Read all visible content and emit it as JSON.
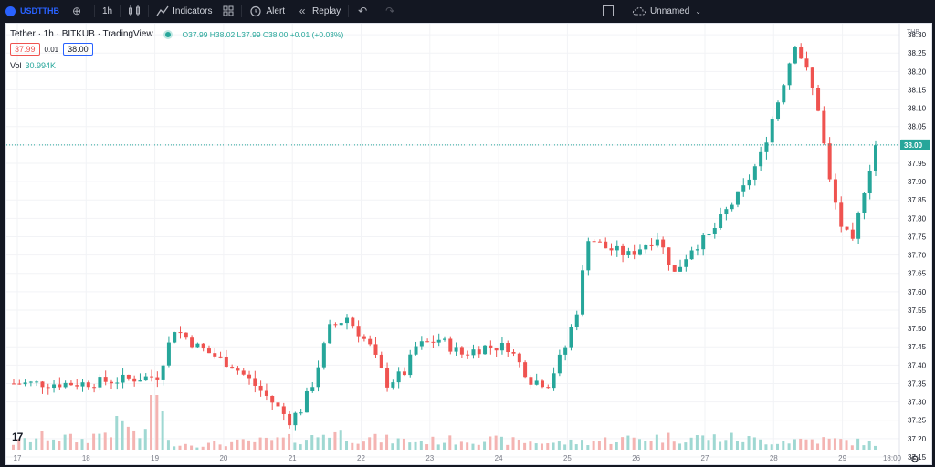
{
  "topbar": {
    "symbol": "USDTTHB",
    "interval": "1h",
    "indicators_label": "Indicators",
    "alert_label": "Alert",
    "replay_label": "Replay",
    "layout_name": "Unnamed"
  },
  "legend": {
    "title": "Tether · 1h · BITKUB · TradingView",
    "ohlc": "O37.99 H38.02 L37.99 C38.00 +0.01 (+0.03%)",
    "bid": "37.99",
    "spread": "0.01",
    "ask": "38.00",
    "vol_label": "Vol",
    "vol_value": "30.994K"
  },
  "colors": {
    "up": "#26a69a",
    "down": "#ef5350",
    "last_price": "#26a69a"
  },
  "chart_data": {
    "type": "candlestick",
    "price_axis": {
      "currency": "THB",
      "ticks": [
        "38.30",
        "38.25",
        "38.20",
        "38.15",
        "38.10",
        "38.05",
        "38.00",
        "37.95",
        "37.90",
        "37.85",
        "37.80",
        "37.75",
        "37.70",
        "37.65",
        "37.60",
        "37.55",
        "37.50",
        "37.45",
        "37.40",
        "37.35",
        "37.30",
        "37.25",
        "37.20",
        "37.15"
      ],
      "range": [
        37.13,
        38.33
      ],
      "last_price": "38.00"
    },
    "time_axis": {
      "ticks": [
        "17",
        "18",
        "19",
        "20",
        "21",
        "22",
        "23",
        "24",
        "25",
        "26",
        "27",
        "28",
        "29",
        "18:00"
      ]
    },
    "price_path": [
      [
        0,
        37.35
      ],
      [
        12,
        37.35
      ],
      [
        25,
        37.37
      ],
      [
        28,
        37.5
      ],
      [
        32,
        37.45
      ],
      [
        38,
        37.4
      ],
      [
        41,
        37.36
      ],
      [
        45,
        37.3
      ],
      [
        48,
        37.25
      ],
      [
        50,
        37.28
      ],
      [
        52,
        37.35
      ],
      [
        55,
        37.5
      ],
      [
        58,
        37.53
      ],
      [
        62,
        37.45
      ],
      [
        65,
        37.35
      ],
      [
        68,
        37.38
      ],
      [
        70,
        37.45
      ],
      [
        74,
        37.47
      ],
      [
        78,
        37.43
      ],
      [
        82,
        37.45
      ],
      [
        86,
        37.45
      ],
      [
        90,
        37.36
      ],
      [
        93,
        37.35
      ],
      [
        96,
        37.45
      ],
      [
        98,
        37.55
      ],
      [
        100,
        37.75
      ],
      [
        103,
        37.72
      ],
      [
        107,
        37.7
      ],
      [
        112,
        37.75
      ],
      [
        115,
        37.65
      ],
      [
        118,
        37.72
      ],
      [
        121,
        37.75
      ],
      [
        124,
        37.82
      ],
      [
        127,
        37.88
      ],
      [
        130,
        37.97
      ],
      [
        133,
        38.12
      ],
      [
        136,
        38.28
      ],
      [
        138,
        38.2
      ],
      [
        140,
        38.1
      ],
      [
        142,
        37.9
      ],
      [
        144,
        37.78
      ],
      [
        146,
        37.73
      ],
      [
        148,
        37.88
      ],
      [
        150,
        38.0
      ]
    ],
    "volume_scale": 100,
    "volume_path": [
      [
        0,
        14
      ],
      [
        6,
        30
      ],
      [
        12,
        20
      ],
      [
        20,
        58
      ],
      [
        21,
        33
      ],
      [
        25,
        18
      ],
      [
        32,
        10
      ],
      [
        52,
        25
      ],
      [
        55,
        40
      ],
      [
        60,
        25
      ],
      [
        70,
        18
      ],
      [
        80,
        22
      ],
      [
        95,
        14
      ],
      [
        105,
        22
      ],
      [
        112,
        26
      ],
      [
        120,
        26
      ],
      [
        125,
        25
      ],
      [
        132,
        18
      ],
      [
        138,
        22
      ],
      [
        143,
        20
      ],
      [
        150,
        14
      ]
    ],
    "volume_spikes": [
      [
        24,
        100
      ],
      [
        25,
        100
      ],
      [
        26,
        70
      ],
      [
        23,
        38
      ]
    ]
  }
}
